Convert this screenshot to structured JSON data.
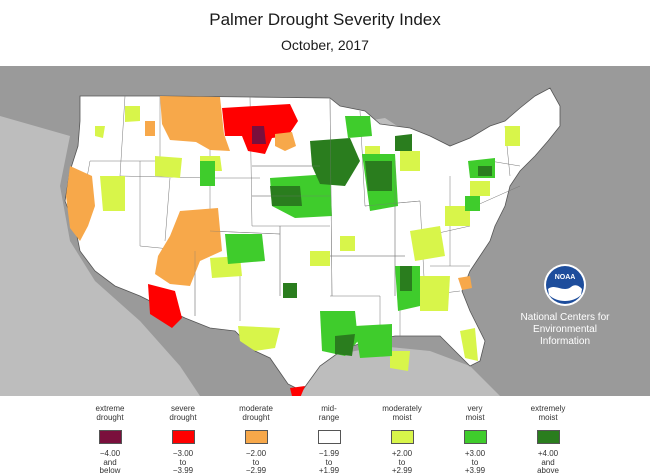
{
  "header": {
    "title": "Palmer Drought Severity Index",
    "subtitle": "October, 2017"
  },
  "credit": {
    "logo_text": "NOAA",
    "line1": "National Centers for",
    "line2": "Environmental",
    "line3": "Information"
  },
  "legend": [
    {
      "label1": "extreme",
      "label2": "drought",
      "r1": "−4.00",
      "r2": "and",
      "r3": "below",
      "color": "#7a0f3c"
    },
    {
      "label1": "severe",
      "label2": "drought",
      "r1": "−3.00",
      "r2": "to",
      "r3": "−3.99",
      "color": "#ff0000"
    },
    {
      "label1": "moderate",
      "label2": "drought",
      "r1": "−2.00",
      "r2": "to",
      "r3": "−2.99",
      "color": "#f7a84a"
    },
    {
      "label1": "mid-",
      "label2": "range",
      "r1": "−1.99",
      "r2": "to",
      "r3": "+1.99",
      "color": "#ffffff"
    },
    {
      "label1": "moderately",
      "label2": "moist",
      "r1": "+2.00",
      "r2": "to",
      "r3": "+2.99",
      "color": "#d8f54a"
    },
    {
      "label1": "very",
      "label2": "moist",
      "r1": "+3.00",
      "r2": "to",
      "r3": "+3.99",
      "color": "#3fcc2c"
    },
    {
      "label1": "extremely",
      "label2": "moist",
      "r1": "+4.00",
      "r2": "and",
      "r3": "above",
      "color": "#2a7d1e"
    }
  ],
  "colors": {
    "background_land": "#9a9a9a",
    "ocean": "#bdbdbd",
    "us_land": "#ffffff",
    "boundary": "#555555"
  }
}
